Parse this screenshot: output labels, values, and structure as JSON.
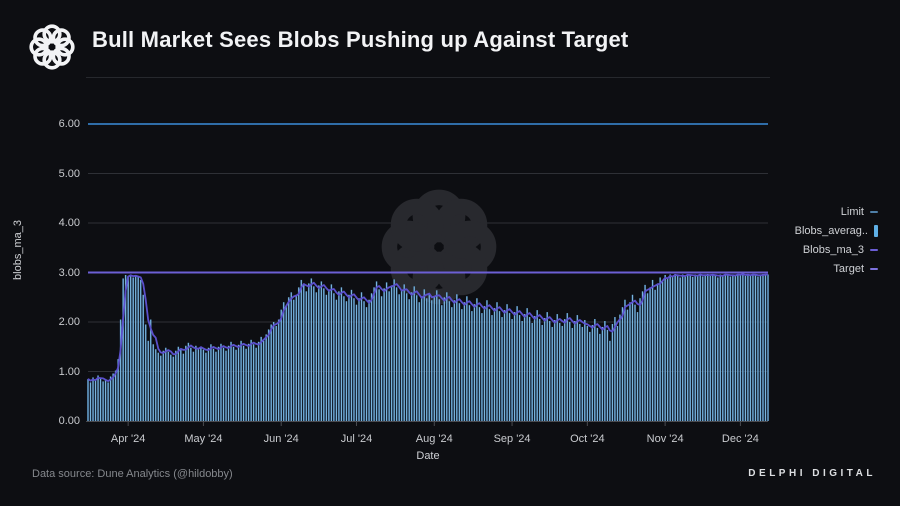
{
  "header": {
    "title": "Bull Market Sees Blobs Pushing up Against Target"
  },
  "footer": {
    "source": "Data source: Dune Analytics (@hildobby)",
    "brand": "DELPHI DIGITAL"
  },
  "legend": {
    "items": [
      {
        "label": "Limit",
        "marker": "dash",
        "color": "#4f7fa8"
      },
      {
        "label": "Blobs_averag..",
        "marker": "bar",
        "color": "#5fb0e6"
      },
      {
        "label": "Blobs_ma_3",
        "marker": "dash",
        "color": "#6b5ed6"
      },
      {
        "label": "Target",
        "marker": "dash",
        "color": "#7d72de"
      }
    ]
  },
  "chart_data": {
    "type": "bar",
    "title": "Bull Market Sees Blobs Pushing up Against Target",
    "xlabel": "Date",
    "ylabel": "blobs_ma_3",
    "ylim": [
      0,
      6.32
    ],
    "grid": "horizontal",
    "legend_position": "right-outside",
    "yticklabels": [
      "0.00",
      "1.00",
      "2.00",
      "3.00",
      "4.00",
      "5.00",
      "6.00"
    ],
    "xticklabels": [
      "Apr '24",
      "May '24",
      "Jun '24",
      "Jul '24",
      "Aug '24",
      "Sep '24",
      "Oct '24",
      "Nov '24",
      "Dec '24"
    ],
    "xtick_day_indices": [
      16,
      46,
      77,
      107,
      138,
      169,
      199,
      230,
      260
    ],
    "start_date": "2024-03-16",
    "end_date": "2024-12-12",
    "colors": {
      "bar_edge": "#2f5a88",
      "bar_highlight": "#82c0e8",
      "ma_line": "#5b50cc",
      "target_line": "#6c5fd4",
      "limit_line": "#2f6da8",
      "gridline": "#2e3036",
      "axis_spine": "#4a4b50",
      "watermark": "#28292e"
    },
    "series": [
      {
        "name": "Blobs_average",
        "type": "bar",
        "values": [
          0.85,
          0.78,
          0.88,
          0.82,
          0.92,
          0.86,
          0.8,
          0.84,
          0.78,
          0.9,
          0.96,
          1.02,
          1.25,
          2.05,
          2.88,
          2.95,
          2.92,
          2.96,
          2.9,
          2.94,
          2.92,
          2.85,
          2.55,
          1.95,
          1.62,
          2.05,
          1.55,
          1.45,
          1.38,
          1.32,
          1.42,
          1.48,
          1.4,
          1.34,
          1.3,
          1.42,
          1.5,
          1.45,
          1.36,
          1.52,
          1.58,
          1.48,
          1.4,
          1.52,
          1.46,
          1.5,
          1.44,
          1.38,
          1.48,
          1.55,
          1.46,
          1.4,
          1.5,
          1.56,
          1.48,
          1.42,
          1.52,
          1.6,
          1.5,
          1.44,
          1.54,
          1.62,
          1.52,
          1.46,
          1.56,
          1.64,
          1.55,
          1.48,
          1.6,
          1.7,
          1.62,
          1.75,
          1.85,
          1.95,
          2.0,
          1.92,
          2.05,
          2.25,
          2.4,
          2.32,
          2.5,
          2.6,
          2.45,
          2.55,
          2.7,
          2.85,
          2.75,
          2.62,
          2.78,
          2.88,
          2.72,
          2.6,
          2.74,
          2.82,
          2.68,
          2.55,
          2.66,
          2.76,
          2.58,
          2.45,
          2.62,
          2.7,
          2.52,
          2.42,
          2.55,
          2.65,
          2.48,
          2.35,
          2.48,
          2.6,
          2.42,
          2.3,
          2.45,
          2.58,
          2.7,
          2.82,
          2.66,
          2.52,
          2.68,
          2.8,
          2.62,
          2.74,
          2.86,
          2.7,
          2.56,
          2.64,
          2.76,
          2.58,
          2.46,
          2.6,
          2.72,
          2.54,
          2.4,
          2.52,
          2.66,
          2.48,
          2.58,
          2.44,
          2.52,
          2.64,
          2.46,
          2.34,
          2.5,
          2.6,
          2.42,
          2.3,
          2.44,
          2.56,
          2.38,
          2.26,
          2.4,
          2.52,
          2.34,
          2.22,
          2.36,
          2.48,
          2.3,
          2.18,
          2.32,
          2.44,
          2.26,
          2.14,
          2.28,
          2.4,
          2.22,
          2.1,
          2.24,
          2.36,
          2.18,
          2.06,
          2.2,
          2.32,
          2.14,
          2.02,
          2.16,
          2.28,
          2.1,
          1.98,
          2.12,
          2.24,
          2.06,
          1.94,
          2.08,
          2.2,
          2.02,
          1.9,
          2.04,
          2.16,
          1.98,
          1.92,
          2.06,
          2.18,
          2.0,
          1.88,
          2.02,
          2.14,
          1.96,
          1.9,
          2.04,
          1.92,
          1.8,
          1.94,
          2.06,
          1.88,
          1.76,
          1.9,
          2.02,
          1.84,
          1.62,
          1.96,
          2.1,
          1.92,
          2.15,
          2.3,
          2.45,
          2.25,
          2.4,
          2.55,
          2.35,
          2.2,
          2.48,
          2.62,
          2.75,
          2.58,
          2.7,
          2.85,
          2.65,
          2.78,
          2.9,
          2.82,
          2.95,
          2.88,
          2.96,
          2.92,
          2.97,
          2.94,
          2.9,
          2.96,
          2.93,
          2.97,
          2.95,
          2.91,
          2.96,
          2.94,
          2.97,
          2.92,
          2.95,
          2.97,
          2.93,
          2.96,
          2.95,
          2.9,
          2.96,
          2.94,
          2.97,
          2.95,
          2.92,
          2.96,
          2.94,
          2.97,
          2.95,
          2.97,
          2.93,
          2.96,
          2.94,
          2.97,
          2.95,
          2.92,
          2.96,
          2.97,
          2.94,
          2.96
        ]
      },
      {
        "name": "Blobs_ma_3",
        "type": "line",
        "derived_from": "Blobs_average",
        "window": 3
      },
      {
        "name": "Target",
        "type": "hline",
        "value": 3.0
      },
      {
        "name": "Limit",
        "type": "hline",
        "value": 6.0
      }
    ]
  }
}
